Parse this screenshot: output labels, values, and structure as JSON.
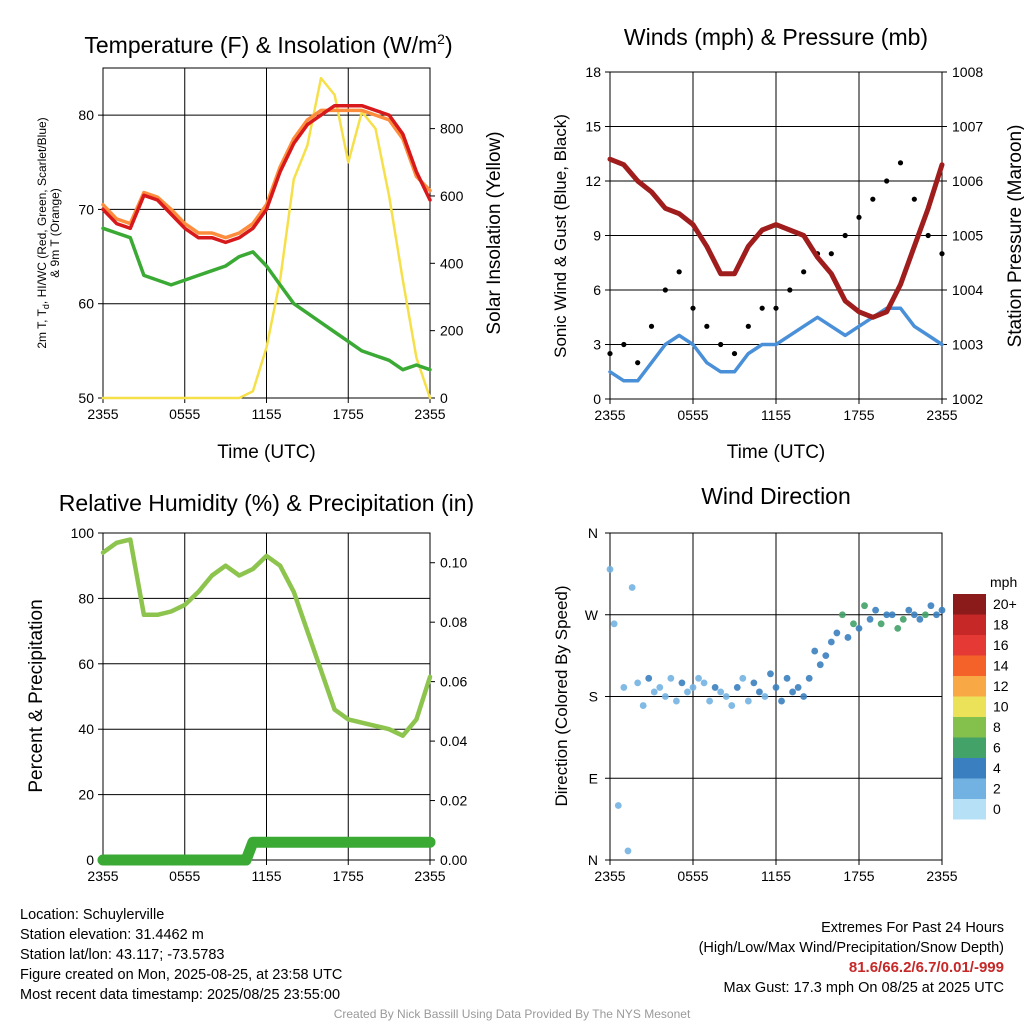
{
  "chart_data": [
    {
      "type": "line",
      "title": "Temperature (F) & Insolation (W/m²)",
      "title_text": "Temperature (F) & Insolation (W/m",
      "title_sup": "2",
      "title_close": ")",
      "xlabel": "Time (UTC)",
      "ylabel_lines": [
        "2m T, T",
        "d",
        ", HI/WC (Red, Green, Scarlet/Blue)",
        "& 9m T (Orange)"
      ],
      "ylabel2": "Solar Insolation (Yellow)",
      "x_ticks": [
        "2355",
        "0555",
        "1155",
        "1755",
        "2355"
      ],
      "y_ticks": [
        "50",
        "60",
        "70",
        "80"
      ],
      "y2_ticks": [
        "0",
        "200",
        "400",
        "600",
        "800"
      ],
      "ylim": [
        50,
        85
      ],
      "y2lim": [
        0,
        980
      ],
      "series": [
        {
          "color": "#d7191c",
          "x": [
            0,
            1,
            2,
            3,
            4,
            5,
            6,
            7,
            8,
            9,
            10,
            11,
            12,
            13,
            14,
            15,
            16,
            17,
            18,
            19,
            20,
            21,
            22,
            23,
            24
          ],
          "values": [
            70,
            68.5,
            68,
            71.5,
            71,
            69.5,
            68,
            67,
            67,
            66.5,
            67,
            68,
            70,
            74,
            77,
            79,
            80,
            81,
            81,
            81,
            80.5,
            80,
            78,
            74,
            71
          ]
        },
        {
          "color": "#fd8d3c",
          "x": [
            0,
            1,
            2,
            3,
            4,
            5,
            6,
            7,
            8,
            9,
            10,
            11,
            12,
            13,
            14,
            15,
            16,
            17,
            18,
            19,
            20,
            21,
            22,
            23,
            24
          ],
          "values": [
            70.5,
            69,
            68.5,
            71.8,
            71.3,
            70,
            68.5,
            67.5,
            67.5,
            67,
            67.5,
            68.5,
            70.5,
            74.5,
            77.5,
            79.5,
            80.5,
            80.5,
            80.5,
            80.5,
            80,
            79.5,
            77.5,
            73.5,
            72
          ]
        },
        {
          "color": "#3aaa35",
          "x": [
            0,
            1,
            2,
            3,
            4,
            5,
            6,
            7,
            8,
            9,
            10,
            11,
            12,
            13,
            14,
            15,
            16,
            17,
            18,
            19,
            20,
            21,
            22,
            23,
            24
          ],
          "values": [
            68,
            67.5,
            67,
            63,
            62.5,
            62,
            62.5,
            63,
            63.5,
            64,
            65,
            65.5,
            64,
            62,
            60,
            59,
            58,
            57,
            56,
            55,
            54.5,
            54,
            53,
            53.5,
            53
          ]
        },
        {
          "color": "#f6e04a",
          "x": [
            0,
            2,
            4,
            6,
            8,
            10,
            11,
            12,
            13,
            14,
            15,
            16,
            17,
            18,
            19,
            20,
            21,
            22,
            23,
            24
          ],
          "values": [
            0,
            0,
            0,
            0,
            0,
            0,
            20,
            150,
            350,
            650,
            750,
            950,
            900,
            700,
            850,
            800,
            600,
            350,
            120,
            0
          ]
        }
      ]
    },
    {
      "type": "line",
      "title": "Winds (mph) & Pressure (mb)",
      "xlabel": "Time (UTC)",
      "ylabel": "Sonic Wind & Gust (Blue, Black)",
      "ylabel2": "Station Pressure (Maroon)",
      "x_ticks": [
        "2355",
        "0555",
        "1155",
        "1755",
        "2355"
      ],
      "y_ticks": [
        "0",
        "3",
        "6",
        "9",
        "12",
        "15",
        "18"
      ],
      "y2_ticks": [
        "1002",
        "1003",
        "1004",
        "1005",
        "1006",
        "1007",
        "1008"
      ],
      "ylim": [
        0,
        18
      ],
      "y2lim": [
        1002,
        1008
      ],
      "series": [
        {
          "color": "#4a90d9",
          "x": [
            0,
            1,
            2,
            3,
            4,
            5,
            6,
            7,
            8,
            9,
            10,
            11,
            12,
            13,
            14,
            15,
            16,
            17,
            18,
            19,
            20,
            21,
            22,
            23,
            24
          ],
          "values": [
            1.5,
            1,
            1,
            2,
            3,
            3.5,
            3,
            2,
            1.5,
            1.5,
            2.5,
            3,
            3,
            3.5,
            4,
            4.5,
            4,
            3.5,
            4,
            4.5,
            5,
            5,
            4,
            3.5,
            3
          ]
        },
        {
          "color": "#000000",
          "type": "scatter",
          "x": [
            0,
            1,
            2,
            3,
            4,
            5,
            6,
            7,
            8,
            9,
            10,
            11,
            12,
            13,
            14,
            15,
            16,
            17,
            18,
            19,
            20,
            21,
            22,
            23,
            24
          ],
          "values": [
            2.5,
            3,
            2,
            4,
            6,
            7,
            5,
            4,
            3,
            2.5,
            4,
            5,
            5,
            6,
            7,
            8,
            8,
            9,
            10,
            11,
            12,
            13,
            11,
            9,
            8
          ]
        },
        {
          "color": "#a01d1d",
          "x": [
            0,
            1,
            2,
            3,
            4,
            5,
            6,
            7,
            8,
            9,
            10,
            11,
            12,
            13,
            14,
            15,
            16,
            17,
            18,
            19,
            20,
            21,
            22,
            23,
            24
          ],
          "values": [
            1006.4,
            1006.3,
            1006.0,
            1005.8,
            1005.5,
            1005.4,
            1005.2,
            1004.8,
            1004.3,
            1004.3,
            1004.8,
            1005.1,
            1005.2,
            1005.1,
            1005.0,
            1004.6,
            1004.3,
            1003.8,
            1003.6,
            1003.5,
            1003.6,
            1004.1,
            1004.8,
            1005.5,
            1006.3
          ]
        }
      ]
    },
    {
      "type": "line",
      "title": "Relative Humidity (%) & Precipitation (in)",
      "xlabel": "",
      "ylabel": "Percent & Precipitation",
      "x_ticks": [
        "2355",
        "0555",
        "1155",
        "1755",
        "2355"
      ],
      "y_ticks": [
        "0",
        "20",
        "40",
        "60",
        "80",
        "100"
      ],
      "y2_ticks": [
        "0.00",
        "0.02",
        "0.04",
        "0.06",
        "0.08",
        "0.10"
      ],
      "ylim": [
        0,
        100
      ],
      "y2lim": [
        0,
        0.11
      ],
      "series": [
        {
          "color": "#8dc44e",
          "x": [
            0,
            1,
            2,
            3,
            4,
            5,
            6,
            7,
            8,
            9,
            10,
            11,
            12,
            13,
            14,
            15,
            16,
            17,
            18,
            19,
            20,
            21,
            22,
            23,
            24
          ],
          "values": [
            94,
            97,
            98,
            75,
            75,
            76,
            78,
            82,
            87,
            90,
            87,
            89,
            93,
            90,
            82,
            70,
            58,
            46,
            43,
            42,
            41,
            40,
            38,
            43,
            56
          ]
        },
        {
          "color": "#3aaa35",
          "x": [
            0,
            2,
            4,
            6,
            8,
            10,
            10.5,
            11,
            12,
            14,
            16,
            18,
            20,
            22,
            24
          ],
          "values": [
            0,
            0,
            0,
            0,
            0,
            0,
            0,
            0.006,
            0.006,
            0.006,
            0.006,
            0.006,
            0.006,
            0.006,
            0.006
          ]
        }
      ]
    },
    {
      "type": "scatter",
      "title": "Wind Direction",
      "xlabel": "",
      "ylabel": "Direction (Colored By Speed)",
      "x_ticks": [
        "2355",
        "0555",
        "1155",
        "1755",
        "2355"
      ],
      "y_ticks": [
        "N",
        "E",
        "S",
        "W",
        "N"
      ],
      "ylim": [
        0,
        360
      ],
      "legend_title": "mph",
      "legend_labels": [
        "20+",
        "18",
        "16",
        "14",
        "12",
        "10",
        "8",
        "6",
        "4",
        "2",
        "0"
      ],
      "legend_colors": [
        "#8b1a1a",
        "#c62828",
        "#e53935",
        "#f4622a",
        "#f8a845",
        "#ece25a",
        "#84c04c",
        "#42a268",
        "#3a7fbf",
        "#72b2e2",
        "#b5e0f5"
      ],
      "x": [
        0,
        0.3,
        0.6,
        1,
        1.3,
        1.6,
        2,
        2.4,
        2.8,
        3.2,
        3.6,
        4,
        4.4,
        4.8,
        5.2,
        5.6,
        6,
        6.4,
        6.8,
        7.2,
        7.6,
        8,
        8.4,
        8.8,
        9.2,
        9.6,
        10,
        10.4,
        10.8,
        11.2,
        11.6,
        12,
        12.4,
        12.8,
        13.2,
        13.6,
        14,
        14.4,
        14.8,
        15.2,
        15.6,
        16,
        16.4,
        16.8,
        17.2,
        17.6,
        18,
        18.4,
        18.8,
        19.2,
        19.6,
        20,
        20.4,
        20.8,
        21.2,
        21.6,
        22,
        22.4,
        22.8,
        23.2,
        23.6,
        24
      ],
      "values": [
        320,
        260,
        60,
        190,
        10,
        300,
        195,
        170,
        200,
        185,
        190,
        180,
        200,
        175,
        195,
        185,
        190,
        200,
        195,
        175,
        190,
        185,
        180,
        170,
        190,
        200,
        175,
        195,
        185,
        180,
        205,
        190,
        175,
        200,
        185,
        190,
        180,
        200,
        230,
        215,
        225,
        240,
        250,
        270,
        245,
        260,
        255,
        280,
        265,
        275,
        260,
        270,
        270,
        255,
        265,
        275,
        270,
        265,
        270,
        280,
        270,
        275
      ],
      "speeds": [
        1,
        1,
        1,
        2,
        1,
        1,
        2,
        2,
        3,
        2,
        2,
        2,
        2,
        2,
        3,
        2,
        2,
        2,
        2,
        2,
        3,
        2,
        2,
        2,
        3,
        2,
        2,
        3,
        3,
        2,
        3,
        3,
        3,
        3,
        3,
        3,
        3,
        3,
        4,
        3,
        4,
        4,
        4,
        5,
        4,
        6,
        4,
        5,
        4,
        4,
        6,
        4,
        4,
        5,
        6,
        4,
        4,
        4,
        5,
        4,
        4,
        4
      ]
    }
  ],
  "info": {
    "location": "Location: Schuylerville",
    "elevation": "Station elevation: 31.4462 m",
    "latlon": "Station lat/lon: 43.117; -73.5783",
    "created": "Figure created on Mon, 2025-08-25, at 23:58 UTC",
    "recent": "Most recent data timestamp: 2025/08/25 23:55:00"
  },
  "extremes": {
    "heading": "Extremes For Past 24 Hours",
    "subheading": "(High/Low/Max Wind/Precipitation/Snow Depth)",
    "values": "81.6/66.2/6.7/0.01/-999",
    "max_gust": "Max Gust: 17.3 mph On 08/25 at 2025 UTC"
  },
  "credit": "Created By Nick Bassill Using Data Provided By The NYS Mesonet"
}
